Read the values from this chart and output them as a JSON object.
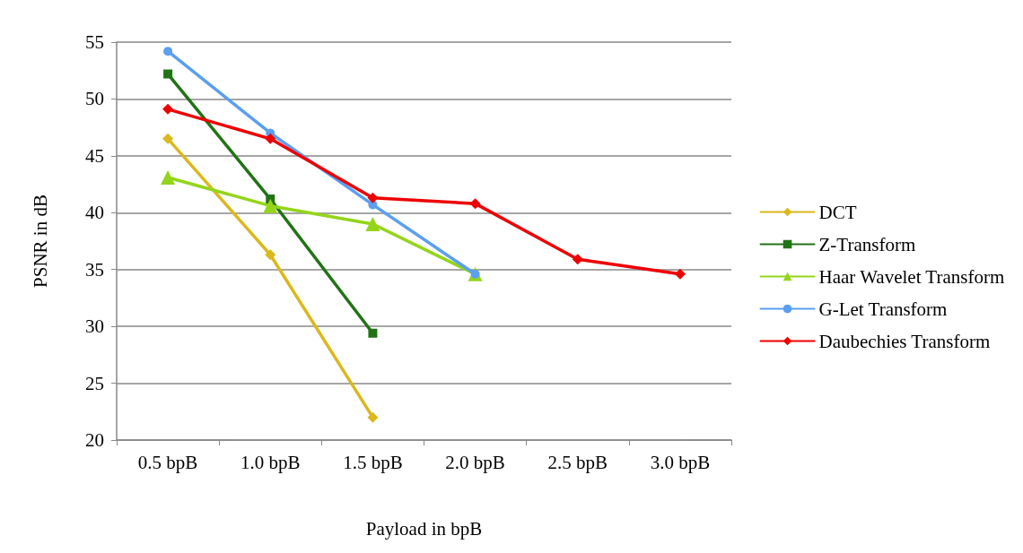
{
  "chart_data": {
    "type": "line",
    "xlabel": "Payload in bpB",
    "ylabel": "PSNR in dB",
    "categories": [
      "0.5 bpB",
      "1.0 bpB",
      "1.5 bpB",
      "2.0 bpB",
      "2.5 bpB",
      "3.0 bpB"
    ],
    "series": [
      {
        "name": "DCT",
        "color": "#dbb81c",
        "marker": "diamond",
        "values": [
          46.5,
          36.3,
          22.0,
          null,
          null,
          null
        ]
      },
      {
        "name": "Z-Transform",
        "color": "#227316",
        "marker": "square",
        "values": [
          52.2,
          41.2,
          29.4,
          null,
          null,
          null
        ]
      },
      {
        "name": "Haar Wavelet Transform",
        "color": "#94d51a",
        "marker": "triangle",
        "values": [
          43.1,
          40.6,
          39.0,
          34.6,
          null,
          null
        ]
      },
      {
        "name": "G-Let Transform",
        "color": "#5b9ff0",
        "marker": "circle",
        "values": [
          54.2,
          47.0,
          40.7,
          34.6,
          null,
          null
        ]
      },
      {
        "name": "Daubechies Transform",
        "color": "#ee0000",
        "marker": "diamond",
        "values": [
          49.1,
          46.5,
          41.3,
          40.8,
          35.9,
          34.6
        ]
      }
    ],
    "ylim": [
      20,
      55
    ],
    "yticks": [
      20,
      25,
      30,
      35,
      40,
      45,
      50,
      55
    ],
    "grid": "y",
    "legend": "right",
    "line_style": "solid"
  }
}
